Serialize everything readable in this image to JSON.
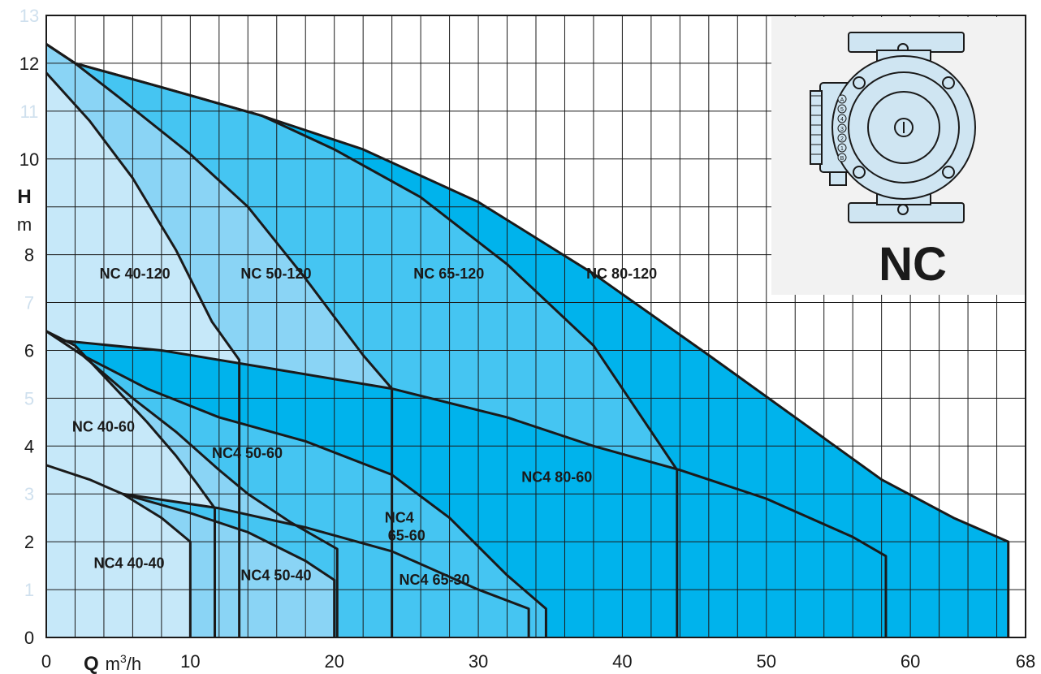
{
  "chart_data": {
    "type": "area",
    "xlim": [
      0,
      68
    ],
    "ylim": [
      0,
      13
    ],
    "x_ticks": [
      0,
      10,
      20,
      30,
      40,
      50,
      60,
      68
    ],
    "y_ticks": [
      {
        "value": 0,
        "label": "0",
        "emphasis": true
      },
      {
        "value": 1,
        "label": "1",
        "emphasis": false
      },
      {
        "value": 2,
        "label": "2",
        "emphasis": true
      },
      {
        "value": 3,
        "label": "3",
        "emphasis": false
      },
      {
        "value": 4,
        "label": "4",
        "emphasis": true
      },
      {
        "value": 5,
        "label": "5",
        "emphasis": false
      },
      {
        "value": 6,
        "label": "6",
        "emphasis": true
      },
      {
        "value": 7,
        "label": "7",
        "emphasis": false
      },
      {
        "value": 8,
        "label": "8",
        "emphasis": true
      },
      {
        "value": 10,
        "label": "10",
        "emphasis": true
      },
      {
        "value": 11,
        "label": "11",
        "emphasis": false
      },
      {
        "value": 12,
        "label": "12",
        "emphasis": true
      },
      {
        "value": 13,
        "label": "13",
        "emphasis": false
      }
    ],
    "grid": true,
    "xlabel": {
      "symbol": "Q",
      "unit_base": "m",
      "unit_sup": "3",
      "unit_rest": "/h"
    },
    "ylabel": {
      "symbol": "H",
      "unit": "m"
    },
    "series": [
      {
        "name": "NC 80-120",
        "color": "#00b3ec",
        "label_pos": [
          37.5,
          7.5
        ],
        "points": [
          [
            0,
            12.4
          ],
          [
            2,
            12
          ],
          [
            8,
            11.5
          ],
          [
            15,
            10.9
          ],
          [
            22,
            10.2
          ],
          [
            30,
            9.1
          ],
          [
            38,
            7.6
          ],
          [
            46,
            5.9
          ],
          [
            52,
            4.6
          ],
          [
            58,
            3.3
          ],
          [
            63,
            2.5
          ],
          [
            66.8,
            2
          ],
          [
            66.8,
            0
          ]
        ]
      },
      {
        "name": "NC 65-120",
        "color": "#45c5f2",
        "label_pos": [
          25.5,
          7.5
        ],
        "points": [
          [
            0,
            12.4
          ],
          [
            2,
            12
          ],
          [
            8,
            11.5
          ],
          [
            15,
            10.9
          ],
          [
            20,
            10.2
          ],
          [
            26,
            9.2
          ],
          [
            32,
            7.8
          ],
          [
            38,
            6.1
          ],
          [
            43.8,
            3.5
          ]
        ]
      },
      {
        "name": "NC 50-120",
        "color": "#8ad4f5",
        "label_pos": [
          13.5,
          7.5
        ],
        "points": [
          [
            0,
            12.4
          ],
          [
            2,
            12
          ],
          [
            5,
            11.3
          ],
          [
            10,
            10.1
          ],
          [
            14,
            9
          ],
          [
            18,
            7.5
          ],
          [
            22,
            5.9
          ],
          [
            24,
            5.2
          ]
        ]
      },
      {
        "name": "NC 40-120",
        "color": "#c6e8f9",
        "label_pos": [
          3.7,
          7.5
        ],
        "points": [
          [
            0,
            11.8
          ],
          [
            3,
            10.8
          ],
          [
            6,
            9.6
          ],
          [
            9,
            8.1
          ],
          [
            11.5,
            6.6
          ],
          [
            13.4,
            5.8
          ]
        ]
      },
      {
        "name": "NC4 80-60",
        "color": "#00b3ec",
        "label_pos": [
          33,
          3.25
        ],
        "points": [
          [
            1.2,
            6.2
          ],
          [
            8,
            6
          ],
          [
            16,
            5.6
          ],
          [
            24,
            5.2
          ],
          [
            32,
            4.6
          ],
          [
            38,
            4
          ],
          [
            44,
            3.5
          ],
          [
            50,
            2.9
          ],
          [
            56,
            2.1
          ],
          [
            58.3,
            1.7
          ],
          [
            58.3,
            0
          ]
        ]
      },
      {
        "name": "NC4 65-60",
        "color": "#45c5f2",
        "label_pos": [
          23.5,
          2.4
        ],
        "points": [
          [
            0,
            6.4
          ],
          [
            2.5,
            5.9
          ],
          [
            7,
            5.2
          ],
          [
            12,
            4.6
          ],
          [
            18,
            4.1
          ],
          [
            24,
            3.4
          ],
          [
            28,
            2.5
          ],
          [
            32,
            1.3
          ],
          [
            34.7,
            0.6
          ],
          [
            34.7,
            0
          ]
        ]
      },
      {
        "name": "NC4 50-60",
        "color": "#8ad4f5",
        "label_pos": [
          11.5,
          3.75
        ],
        "points": [
          [
            0,
            6.4
          ],
          [
            2.5,
            5.9
          ],
          [
            6,
            5
          ],
          [
            9,
            4.3
          ],
          [
            12,
            3.5
          ],
          [
            14,
            3
          ],
          [
            17,
            2.4
          ],
          [
            20.2,
            1.85
          ]
        ]
      },
      {
        "name": "NC 40-60",
        "color": "#c6e8f9",
        "label_pos": [
          1.8,
          4.3
        ],
        "points": [
          [
            0,
            6.4
          ],
          [
            2,
            6.1
          ],
          [
            4.5,
            5.3
          ],
          [
            7,
            4.5
          ],
          [
            9,
            3.8
          ],
          [
            10.5,
            3.2
          ],
          [
            11.7,
            2.7
          ]
        ]
      },
      {
        "name": "NC4 65-30",
        "color": "#45c5f2",
        "label_pos": [
          24.5,
          1.1
        ],
        "points": [
          [
            5.3,
            3
          ],
          [
            12,
            2.7
          ],
          [
            18,
            2.3
          ],
          [
            24,
            1.8
          ],
          [
            30,
            1
          ],
          [
            33.5,
            0.6
          ],
          [
            33.5,
            0
          ]
        ]
      },
      {
        "name": "NC4 50-40",
        "color": "#8ad4f5",
        "label_pos": [
          13.5,
          1.2
        ],
        "points": [
          [
            5.3,
            3
          ],
          [
            10,
            2.6
          ],
          [
            14,
            2.2
          ],
          [
            18,
            1.6
          ],
          [
            20,
            1.2
          ],
          [
            20,
            0
          ]
        ]
      },
      {
        "name": "NC4 40-40",
        "color": "#c6e8f9",
        "label_pos": [
          3.3,
          1.45
        ],
        "points": [
          [
            0,
            3.6
          ],
          [
            3,
            3.3
          ],
          [
            5.3,
            3
          ],
          [
            8,
            2.5
          ],
          [
            10,
            2
          ],
          [
            10,
            0
          ]
        ]
      }
    ]
  },
  "inset": {
    "brand_label": "NC",
    "icon": "circulator-pump-icon",
    "panel_color": "#f2f2f2",
    "pump_fill": "#cfe5f2",
    "pump_stroke": "#1a1a1a",
    "speed_marks": [
      "A",
      "5",
      "4",
      "3",
      "2",
      "1",
      "B"
    ]
  }
}
